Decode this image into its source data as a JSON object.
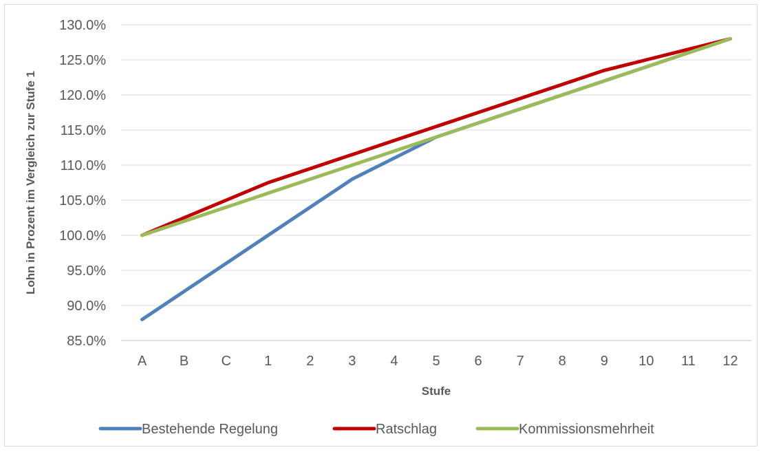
{
  "chart_data": {
    "type": "line",
    "title": "",
    "xlabel": "Stufe",
    "ylabel": "Lohn in Prozent im Vergleich zur Stufe 1",
    "categories": [
      "A",
      "B",
      "C",
      "1",
      "2",
      "3",
      "4",
      "5",
      "6",
      "7",
      "8",
      "9",
      "10",
      "11",
      "12"
    ],
    "ylim": [
      0.85,
      1.3
    ],
    "ytick_step": 0.05,
    "ytick_labels": [
      "85.0%",
      "90.0%",
      "95.0%",
      "100.0%",
      "105.0%",
      "110.0%",
      "115.0%",
      "120.0%",
      "125.0%",
      "130.0%"
    ],
    "grid": true,
    "legend_position": "bottom",
    "series": [
      {
        "name": "Bestehende Regelung",
        "color": "#4f81bd",
        "values": [
          0.88,
          0.92,
          0.96,
          1.0,
          1.04,
          1.08,
          1.11,
          1.14,
          1.16,
          1.18,
          1.2,
          1.22,
          1.24,
          1.26,
          1.28
        ]
      },
      {
        "name": "Ratschlag",
        "color": "#c00000",
        "values": [
          1.0,
          1.025,
          1.05,
          1.075,
          1.095,
          1.115,
          1.135,
          1.155,
          1.175,
          1.195,
          1.215,
          1.235,
          1.25,
          1.265,
          1.28
        ]
      },
      {
        "name": "Kommissionsmehrheit",
        "color": "#9bbb59",
        "values": [
          1.0,
          1.02,
          1.04,
          1.06,
          1.08,
          1.1,
          1.12,
          1.14,
          1.16,
          1.18,
          1.2,
          1.22,
          1.24,
          1.26,
          1.28
        ]
      }
    ]
  }
}
